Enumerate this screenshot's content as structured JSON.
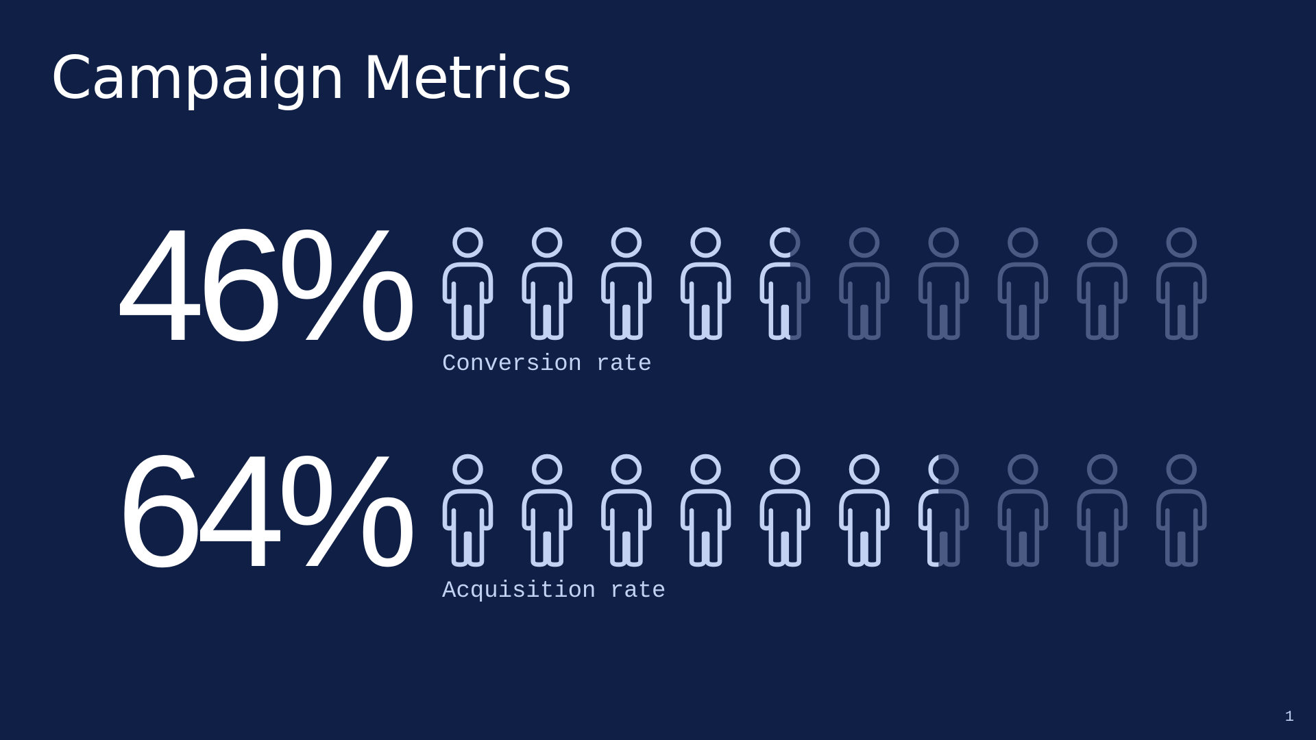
{
  "title": "Campaign Metrics",
  "page_number": 1,
  "chart_data": {
    "type": "pictogram",
    "categories": [
      "Conversion rate",
      "Acquisition rate"
    ],
    "values": [
      46,
      64
    ],
    "value_labels": [
      "46%",
      "64%"
    ],
    "ylim": [
      0,
      100
    ],
    "color": "#c3d1f3",
    "empty_color": "#4a5a82"
  }
}
